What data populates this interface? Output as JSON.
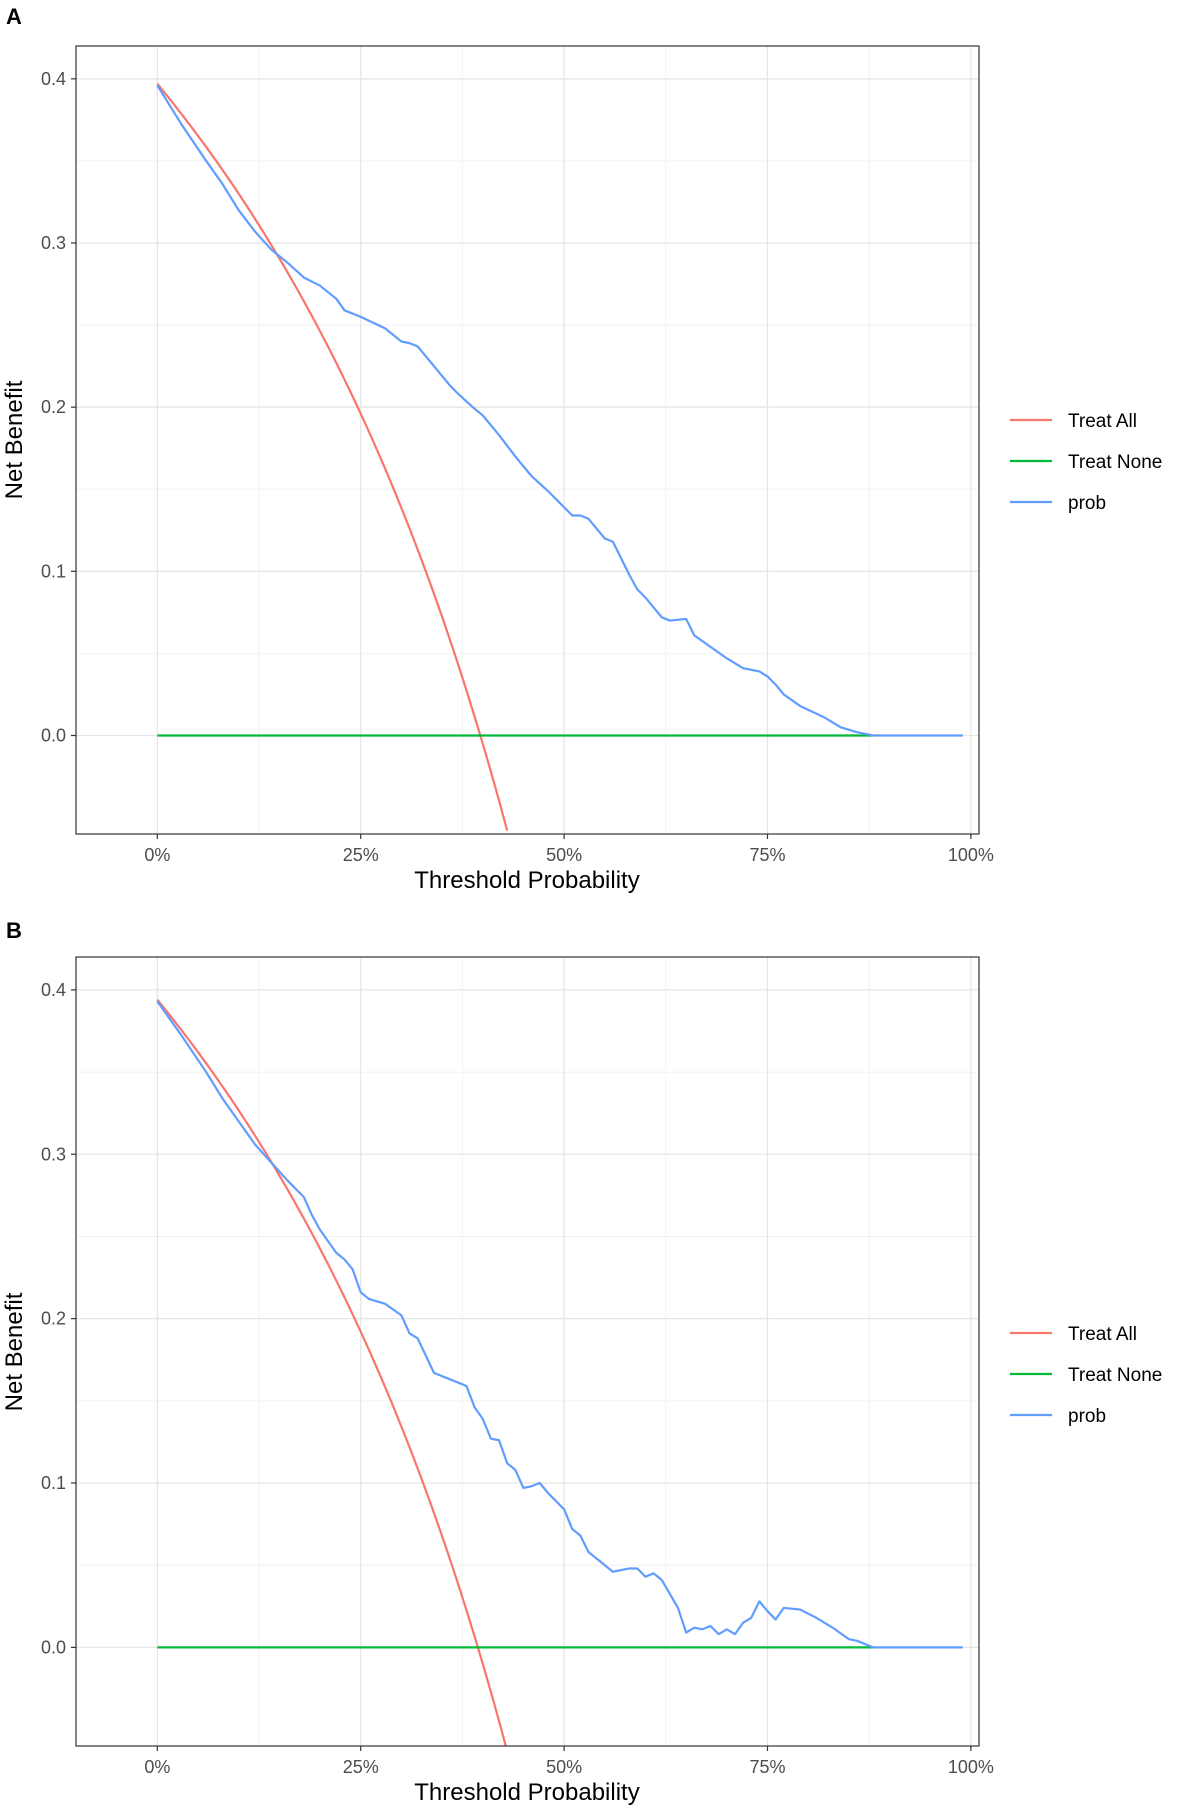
{
  "chart_data": [
    {
      "panel": "A",
      "type": "line",
      "xlabel": "Threshold Probability",
      "ylabel": "Net Benefit",
      "xlim": [
        -0.1,
        1.01
      ],
      "ylim": [
        -0.06,
        0.42
      ],
      "xticks": [
        0,
        0.25,
        0.5,
        0.75,
        1.0
      ],
      "xtick_labels": [
        "0%",
        "25%",
        "50%",
        "75%",
        "100%"
      ],
      "yticks": [
        0.0,
        0.1,
        0.2,
        0.3,
        0.4
      ],
      "ytick_labels": [
        "0.0",
        "0.1",
        "0.2",
        "0.3",
        "0.4"
      ],
      "grid": true,
      "legend_position": "right",
      "series": [
        {
          "name": "Treat All",
          "color": "#F8766D",
          "formula": "treat_all",
          "prevalence": 0.397,
          "x_max": 0.43
        },
        {
          "name": "Treat None",
          "color": "#00BA38",
          "x": [
            0,
            0.88
          ],
          "y": [
            0,
            0
          ]
        },
        {
          "name": "prob",
          "color": "#619CFF",
          "x": [
            0,
            0.03,
            0.06,
            0.08,
            0.1,
            0.12,
            0.14,
            0.16,
            0.18,
            0.2,
            0.22,
            0.23,
            0.25,
            0.28,
            0.3,
            0.31,
            0.32,
            0.36,
            0.37,
            0.39,
            0.4,
            0.42,
            0.44,
            0.46,
            0.48,
            0.49,
            0.51,
            0.52,
            0.53,
            0.55,
            0.56,
            0.58,
            0.59,
            0.6,
            0.62,
            0.63,
            0.65,
            0.66,
            0.68,
            0.7,
            0.72,
            0.73,
            0.74,
            0.75,
            0.76,
            0.77,
            0.79,
            0.82,
            0.84,
            0.86,
            0.88,
            0.99
          ],
          "y": [
            0.396,
            0.372,
            0.35,
            0.336,
            0.32,
            0.307,
            0.296,
            0.288,
            0.279,
            0.274,
            0.266,
            0.259,
            0.255,
            0.248,
            0.24,
            0.239,
            0.237,
            0.213,
            0.208,
            0.199,
            0.195,
            0.183,
            0.17,
            0.158,
            0.149,
            0.144,
            0.134,
            0.134,
            0.132,
            0.12,
            0.118,
            0.098,
            0.089,
            0.084,
            0.072,
            0.07,
            0.071,
            0.061,
            0.054,
            0.047,
            0.041,
            0.04,
            0.039,
            0.036,
            0.031,
            0.025,
            0.018,
            0.011,
            0.005,
            0.002,
            0.0,
            0.0
          ]
        }
      ]
    },
    {
      "panel": "B",
      "type": "line",
      "xlabel": "Threshold Probability",
      "ylabel": "Net Benefit",
      "xlim": [
        -0.1,
        1.01
      ],
      "ylim": [
        -0.06,
        0.42
      ],
      "xticks": [
        0,
        0.25,
        0.5,
        0.75,
        1.0
      ],
      "xtick_labels": [
        "0%",
        "25%",
        "50%",
        "75%",
        "100%"
      ],
      "yticks": [
        0.0,
        0.1,
        0.2,
        0.3,
        0.4
      ],
      "ytick_labels": [
        "0.0",
        "0.1",
        "0.2",
        "0.3",
        "0.4"
      ],
      "grid": true,
      "legend_position": "right",
      "series": [
        {
          "name": "Treat All",
          "color": "#F8766D",
          "formula": "treat_all",
          "prevalence": 0.394,
          "x_max": 0.43
        },
        {
          "name": "Treat None",
          "color": "#00BA38",
          "x": [
            0,
            0.88
          ],
          "y": [
            0,
            0
          ]
        },
        {
          "name": "prob",
          "color": "#619CFF",
          "x": [
            0,
            0.03,
            0.06,
            0.08,
            0.1,
            0.12,
            0.14,
            0.16,
            0.18,
            0.19,
            0.2,
            0.22,
            0.23,
            0.24,
            0.25,
            0.26,
            0.28,
            0.3,
            0.31,
            0.32,
            0.34,
            0.36,
            0.38,
            0.39,
            0.4,
            0.41,
            0.42,
            0.43,
            0.44,
            0.45,
            0.46,
            0.47,
            0.48,
            0.5,
            0.51,
            0.52,
            0.53,
            0.54,
            0.56,
            0.58,
            0.59,
            0.6,
            0.61,
            0.62,
            0.64,
            0.65,
            0.66,
            0.67,
            0.68,
            0.69,
            0.7,
            0.71,
            0.72,
            0.73,
            0.74,
            0.75,
            0.76,
            0.77,
            0.79,
            0.81,
            0.83,
            0.85,
            0.86,
            0.88,
            0.99
          ],
          "y": [
            0.393,
            0.372,
            0.35,
            0.334,
            0.32,
            0.306,
            0.295,
            0.284,
            0.274,
            0.263,
            0.254,
            0.24,
            0.236,
            0.23,
            0.216,
            0.212,
            0.209,
            0.202,
            0.191,
            0.188,
            0.167,
            0.163,
            0.159,
            0.146,
            0.139,
            0.127,
            0.126,
            0.112,
            0.108,
            0.097,
            0.098,
            0.1,
            0.094,
            0.084,
            0.072,
            0.068,
            0.058,
            0.054,
            0.046,
            0.048,
            0.048,
            0.043,
            0.045,
            0.041,
            0.024,
            0.009,
            0.012,
            0.011,
            0.013,
            0.008,
            0.011,
            0.008,
            0.015,
            0.018,
            0.028,
            0.022,
            0.017,
            0.024,
            0.023,
            0.018,
            0.012,
            0.005,
            0.004,
            0.0,
            0.0
          ]
        }
      ]
    }
  ]
}
